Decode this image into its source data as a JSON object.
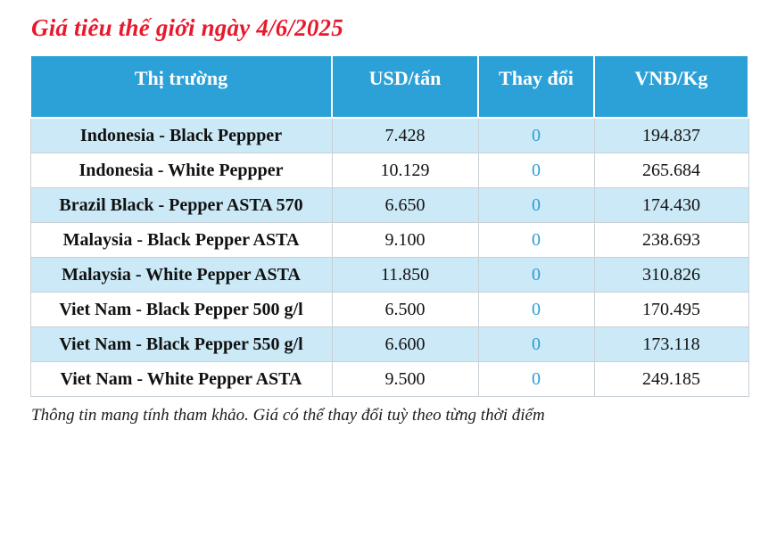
{
  "page": {
    "title": "Giá tiêu thế giới ngày 4/6/2025",
    "footer": "Thông tin mang tính tham khảo. Giá có thể thay đổi tuỳ theo từng thời điểm"
  },
  "colors": {
    "title_red": "#e8192c",
    "header_bg": "#2ba1d8",
    "alt_row_bg": "#cbe9f6",
    "change_value_blue": "#2b9cd8"
  },
  "chart_data": {
    "type": "table",
    "title": "Giá tiêu thế giới ngày 4/6/2025",
    "columns": [
      "Thị trường",
      "USD/tấn",
      "Thay đổi",
      "VNĐ/Kg"
    ],
    "rows": [
      [
        "Indonesia - Black Peppper",
        "7.428",
        "0",
        "194.837"
      ],
      [
        "Indonesia - White Peppper",
        "10.129",
        "0",
        "265.684"
      ],
      [
        "Brazil Black - Pepper ASTA 570",
        "6.650",
        "0",
        "174.430"
      ],
      [
        "Malaysia - Black Pepper ASTA",
        "9.100",
        "0",
        "238.693"
      ],
      [
        "Malaysia - White Pepper ASTA",
        "11.850",
        "0",
        "310.826"
      ],
      [
        "Viet Nam - Black Pepper 500 g/l",
        "6.500",
        "0",
        "170.495"
      ],
      [
        "Viet Nam - Black Pepper 550 g/l",
        "6.600",
        "0",
        "173.118"
      ],
      [
        "Viet Nam - White Pepper ASTA",
        "9.500",
        "0",
        "249.185"
      ]
    ],
    "notes": {
      "striped_rows": "odd data rows (1st, 3rd, ...) have light blue background",
      "change_column_color": "blue"
    }
  }
}
